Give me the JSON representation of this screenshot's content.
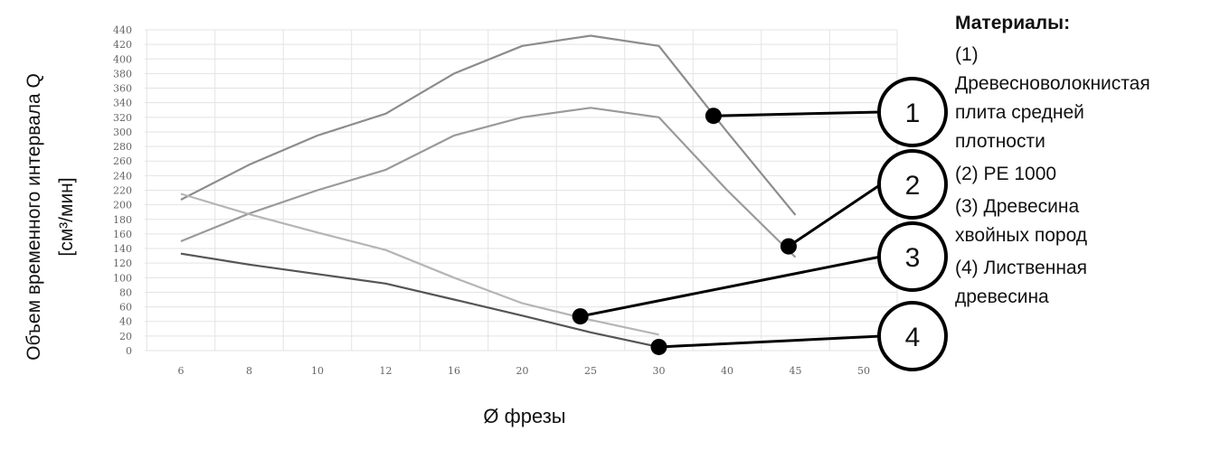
{
  "chart_data": {
    "type": "line",
    "xlabel": "Ø фрезы",
    "ylabel_line1": "Объем временного интервала Q",
    "ylabel_line2": "[см³/мин]",
    "categories": [
      "6",
      "8",
      "10",
      "12",
      "16",
      "20",
      "25",
      "30",
      "40",
      "45",
      "50"
    ],
    "yticks": [
      0,
      20,
      40,
      60,
      80,
      100,
      120,
      140,
      160,
      180,
      200,
      220,
      240,
      260,
      280,
      300,
      320,
      340,
      360,
      380,
      400,
      420,
      440
    ],
    "ylim": [
      0,
      440
    ],
    "grid": true,
    "series": [
      {
        "id": "1",
        "color": "#8c8c8c",
        "values": [
          207,
          255,
          295,
          325,
          380,
          418,
          432,
          418,
          300,
          186,
          null
        ]
      },
      {
        "id": "2",
        "color": "#9a9a9a",
        "values": [
          150,
          188,
          220,
          248,
          295,
          320,
          333,
          320,
          220,
          128,
          null
        ]
      },
      {
        "id": "3",
        "color": "#b5b5b5",
        "values": [
          215,
          187,
          162,
          138,
          100,
          65,
          42,
          22,
          null,
          null,
          null
        ]
      },
      {
        "id": "4",
        "color": "#555555",
        "values": [
          133,
          118,
          105,
          92,
          70,
          48,
          25,
          5,
          null,
          null,
          null
        ]
      }
    ],
    "callouts": [
      {
        "label": "1",
        "series": "1",
        "x_index": 7.8,
        "y": 322
      },
      {
        "label": "2",
        "series": "2",
        "x_index": 8.9,
        "y": 143
      },
      {
        "label": "3",
        "series": "3",
        "x_index": 5.85,
        "y": 47
      },
      {
        "label": "4",
        "series": "4",
        "x_index": 7.0,
        "y": 5
      }
    ]
  },
  "legend": {
    "title": "Материалы:",
    "entries": [
      {
        "text": "(1)\nДревесноволокнистая\nплита  средней\nплотности"
      },
      {
        "text": "(2) PE 1000"
      },
      {
        "text": "(3)  Древесина\nхвойных пород"
      },
      {
        "text": "(4)  Лиственная\nдревесина"
      }
    ]
  }
}
